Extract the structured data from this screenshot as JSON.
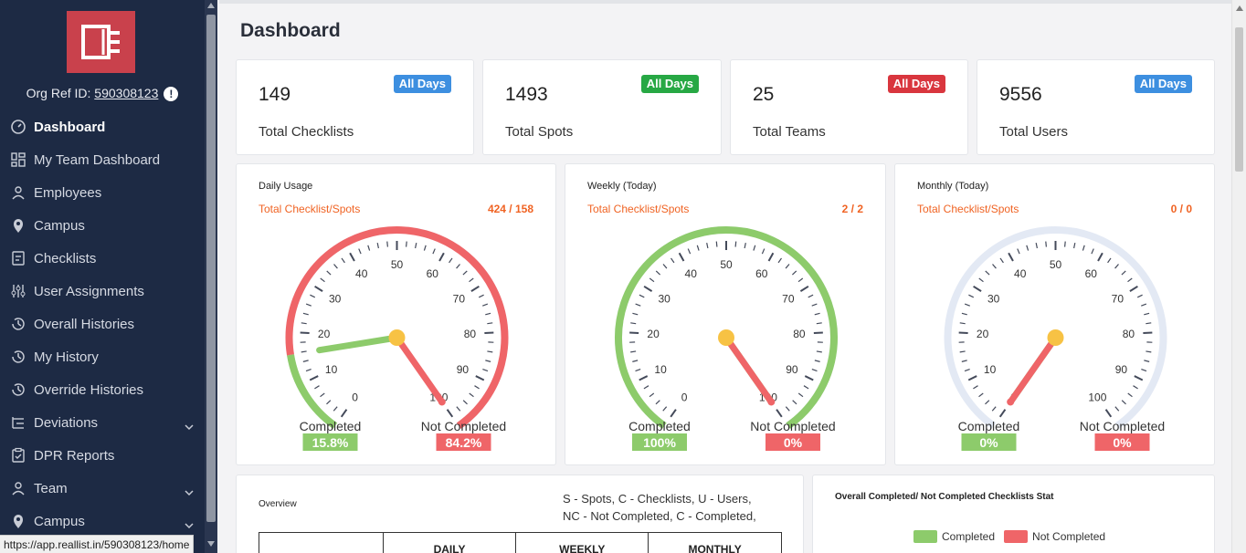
{
  "org": {
    "label": "Org Ref ID:",
    "id": "590308123",
    "info": "!"
  },
  "nav": [
    {
      "label": "Dashboard",
      "icon": "dashboard-icon",
      "active": true
    },
    {
      "label": "My Team Dashboard",
      "icon": "grid-icon"
    },
    {
      "label": "Employees",
      "icon": "people-icon"
    },
    {
      "label": "Campus",
      "icon": "location-pin-icon"
    },
    {
      "label": "Checklists",
      "icon": "checklist-icon"
    },
    {
      "label": "User Assignments",
      "icon": "sliders-icon"
    },
    {
      "label": "Overall Histories",
      "icon": "history-icon"
    },
    {
      "label": "My History",
      "icon": "history-icon"
    },
    {
      "label": "Override Histories",
      "icon": "history-icon"
    },
    {
      "label": "Deviations",
      "icon": "deviations-icon",
      "chevron": true
    },
    {
      "label": "DPR Reports",
      "icon": "clipboard-icon"
    },
    {
      "label": "Team",
      "icon": "people-icon",
      "chevron": true
    },
    {
      "label": "Campus",
      "icon": "location-pin-icon",
      "chevron": true
    }
  ],
  "status_url": "https://app.reallist.in/590308123/home",
  "page_title": "Dashboard",
  "stats": [
    {
      "value": "149",
      "label": "Total Checklists",
      "badge": "All Days",
      "badge_color": "#3d8fe0"
    },
    {
      "value": "1493",
      "label": "Total Spots",
      "badge": "All Days",
      "badge_color": "#27a844"
    },
    {
      "value": "25",
      "label": "Total Teams",
      "badge": "All Days",
      "badge_color": "#d9363e"
    },
    {
      "value": "9556",
      "label": "Total Users",
      "badge": "All Days",
      "badge_color": "#3d8fe0"
    }
  ],
  "gauges": [
    {
      "title": "Daily Usage",
      "subtitle": "Total Checklist/Spots",
      "value": "424 / 158",
      "completed_label": "Completed",
      "completed_pct": "15.8%",
      "completed": 15.8,
      "not_completed_label": "Not Completed",
      "not_completed_pct": "84.2%",
      "not_completed": 84.2
    },
    {
      "title": "Weekly (Today)",
      "subtitle": "Total Checklist/Spots",
      "value": "2 / 2",
      "completed_label": "Completed",
      "completed_pct": "100%",
      "completed": 100,
      "not_completed_label": "Not Completed",
      "not_completed_pct": "0%",
      "not_completed": 0
    },
    {
      "title": "Monthly (Today)",
      "subtitle": "Total Checklist/Spots",
      "value": "0 / 0",
      "completed_label": "Completed",
      "completed_pct": "0%",
      "completed": 0,
      "not_completed_label": "Not Completed",
      "not_completed_pct": "0%",
      "not_completed": 0
    }
  ],
  "gauge_ticks": [
    "0",
    "10",
    "20",
    "30",
    "40",
    "50",
    "60",
    "70",
    "80",
    "90",
    "100"
  ],
  "colors": {
    "completed": "#8dcb6b",
    "not_completed": "#ef6568",
    "track": "#e3e9f4",
    "hub": "#f7c244"
  },
  "overview": {
    "title": "Overview",
    "note_line1": "S - Spots, C - Checklists, U - Users,",
    "note_line2": "NC - Not Completed, C - Completed,",
    "columns": [
      "",
      "DAILY",
      "WEEKLY",
      "MONTHLY"
    ]
  },
  "overall_stat": {
    "title": "Overall Completed/ Not Completed Checklists Stat",
    "legend": [
      {
        "label": "Completed",
        "color": "#8dcb6b"
      },
      {
        "label": "Not Completed",
        "color": "#ef6568"
      }
    ]
  }
}
